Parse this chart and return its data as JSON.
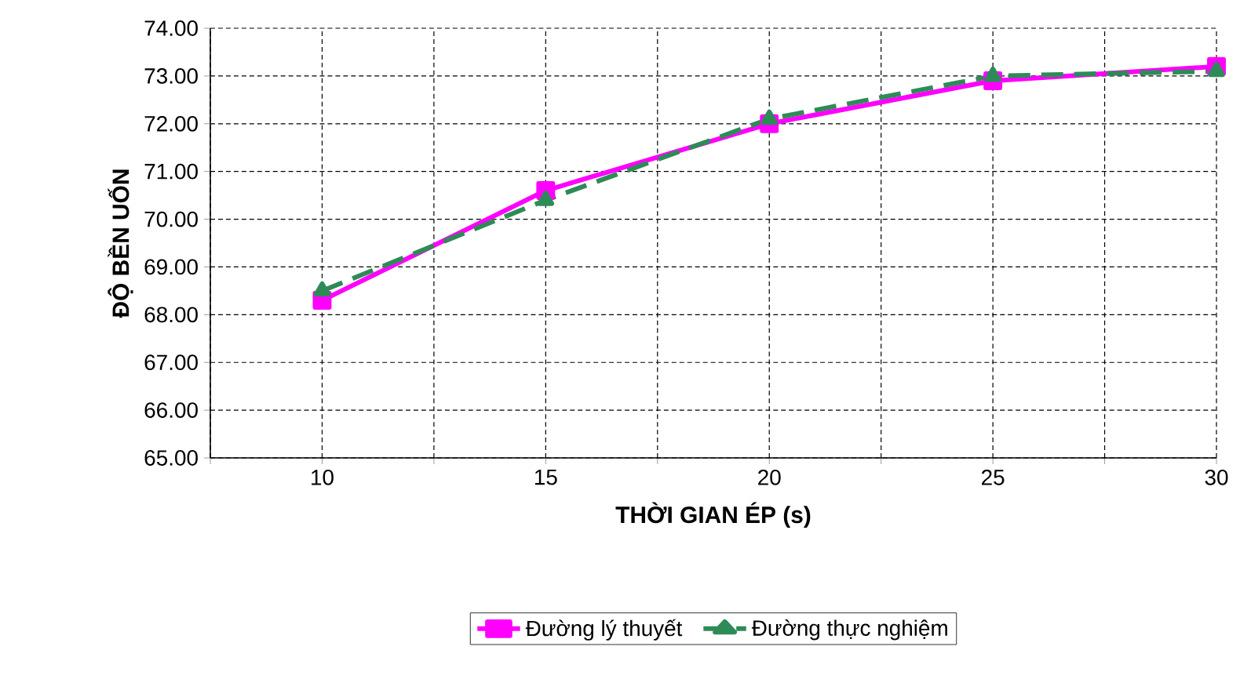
{
  "chart_data": {
    "type": "line",
    "xlabel": "THỜI GIAN ÉP (s)",
    "ylabel": "ĐỘ BỀN UỐN",
    "x": [
      10,
      15,
      20,
      25,
      30
    ],
    "series": [
      {
        "name": "Đường lý thuyết",
        "color": "#ff00ff",
        "values": [
          68.3,
          70.6,
          72.0,
          72.9,
          73.2
        ],
        "marker": "square",
        "line_style": "solid"
      },
      {
        "name": "Đường thực nghiệm",
        "color": "#2e8b57",
        "values": [
          68.5,
          70.4,
          72.1,
          73.0,
          73.1
        ],
        "marker": "triangle",
        "line_style": "dashed"
      }
    ],
    "xlim": [
      7.5,
      30
    ],
    "xticks": [
      {
        "value": 7.5,
        "label": null
      },
      10,
      {
        "value": 12.5,
        "label": null
      },
      15,
      {
        "value": 17.5,
        "label": null
      },
      20,
      {
        "value": 22.5,
        "label": null
      },
      25,
      {
        "value": 27.5,
        "label": null
      },
      30
    ],
    "ylim": [
      65,
      74
    ],
    "yticks": [
      {
        "value": 65,
        "label": "65.00"
      },
      {
        "value": 66,
        "label": "66.00"
      },
      {
        "value": 67,
        "label": "67.00"
      },
      {
        "value": 68,
        "label": "68.00"
      },
      {
        "value": 69,
        "label": "69.00"
      },
      {
        "value": 70,
        "label": "70.00"
      },
      {
        "value": 71,
        "label": "71.00"
      },
      {
        "value": 72,
        "label": "72.00"
      },
      {
        "value": 73,
        "label": "73.00"
      },
      {
        "value": 74,
        "label": "74.00"
      }
    ],
    "grid": true,
    "legend": "bottom"
  }
}
